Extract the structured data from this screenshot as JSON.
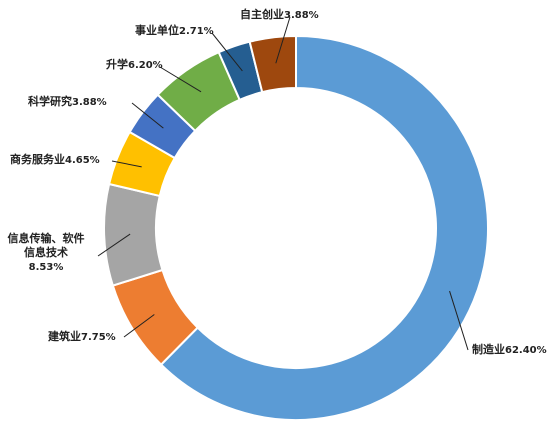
{
  "chart_data": {
    "type": "donut",
    "categories": [
      "制造业",
      "建筑业",
      "信息传输、软件信息技术",
      "商务服务业",
      "科学研究",
      "升学",
      "事业单位",
      "自主创业"
    ],
    "values": [
      62.4,
      7.75,
      8.53,
      4.65,
      3.88,
      6.2,
      2.71,
      3.88
    ],
    "value_labels": [
      "62.40%",
      "7.75%",
      "8.53%",
      "4.65%",
      "3.88%",
      "6.20%",
      "2.71%",
      "3.88%"
    ],
    "colors": [
      "#5b9bd5",
      "#ed7d31",
      "#a5a5a5",
      "#ffc000",
      "#4472c4",
      "#70ad47",
      "#255e91",
      "#9e480e"
    ]
  }
}
